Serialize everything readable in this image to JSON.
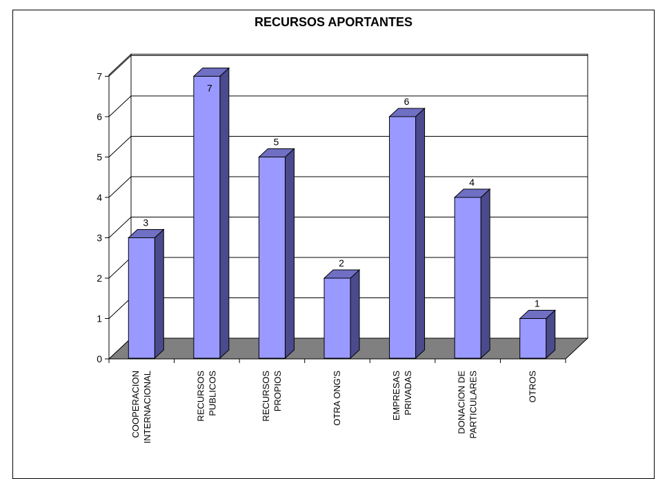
{
  "chart_data": {
    "type": "bar",
    "title": "RECURSOS APORTANTES",
    "xlabel": "",
    "ylabel": "",
    "ylim": [
      0,
      7
    ],
    "yticks": [
      "0",
      "1",
      "2",
      "3",
      "4",
      "5",
      "6",
      "7"
    ],
    "grid": true,
    "categories": [
      [
        "COOPERACION",
        "INTERNACIONAL"
      ],
      [
        "RECURSOS",
        "PUBLICOS"
      ],
      [
        "RECURSOS",
        "PROPIOS"
      ],
      [
        "OTRA ONG'S"
      ],
      [
        "EMPRESAS",
        "PRIVADAS"
      ],
      [
        "DONACION DE",
        "PARTICULARES"
      ],
      [
        "OTROS"
      ]
    ],
    "values": [
      3,
      7,
      5,
      2,
      6,
      4,
      1
    ],
    "data_labels": [
      "3",
      "7",
      "5",
      "2",
      "6",
      "4",
      "1"
    ],
    "colors": {
      "bar_front": "#9999ff",
      "bar_side": "#4a4a8c",
      "bar_top": "#6f6fc4",
      "floor": "#808080",
      "back_wall": "#ffffff"
    }
  }
}
